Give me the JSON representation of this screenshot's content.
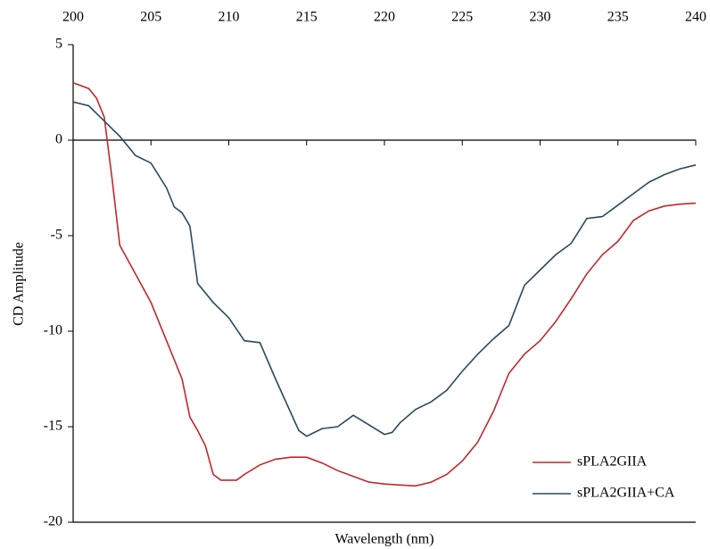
{
  "chart_data": {
    "type": "line",
    "xlabel": "Wavelength (nm)",
    "ylabel": "CD Amplitude",
    "xlim": [
      200,
      240
    ],
    "xticks": [
      200,
      205,
      210,
      215,
      220,
      225,
      230,
      235,
      240
    ],
    "ylim": [
      -20,
      5
    ],
    "yticks": [
      5,
      0,
      -5,
      -10,
      -15,
      -20
    ],
    "legend": "lower right",
    "series": [
      {
        "name": "sPLA2GIIA",
        "color": "#c0282a",
        "x": [
          200,
          201,
          201.5,
          202,
          202.5,
          203,
          204,
          205,
          206,
          207,
          207.5,
          208,
          208.5,
          209,
          209.5,
          210.5,
          211,
          212,
          213,
          214,
          215,
          216,
          217,
          218,
          219,
          220,
          221,
          222,
          223,
          224,
          225,
          226,
          227,
          228,
          229,
          230,
          231,
          232,
          233,
          234,
          235,
          236,
          237,
          238,
          239,
          240
        ],
        "values": [
          3.0,
          2.7,
          2.2,
          1.2,
          -2,
          -5.5,
          -7,
          -8.5,
          -10.5,
          -12.5,
          -14.5,
          -15.2,
          -16,
          -17.5,
          -17.8,
          -17.8,
          -17.5,
          -17,
          -16.7,
          -16.6,
          -16.6,
          -16.9,
          -17.3,
          -17.6,
          -17.9,
          -18.0,
          -18.05,
          -18.1,
          -17.9,
          -17.5,
          -16.8,
          -15.8,
          -14.2,
          -12.2,
          -11.2,
          -10.5,
          -9.5,
          -8.3,
          -7,
          -6,
          -5.3,
          -4.2,
          -3.7,
          -3.45,
          -3.35,
          -3.3
        ]
      },
      {
        "name": "sPLA2GIIA+CA",
        "color": "#2b4a5e",
        "x": [
          200,
          201,
          202,
          203,
          203.5,
          204,
          205,
          206,
          206.5,
          207,
          207.5,
          208,
          209,
          210,
          211,
          212,
          213,
          214,
          214.5,
          215,
          215.5,
          216,
          217,
          218,
          219,
          220,
          220.5,
          221,
          222,
          223,
          224,
          225,
          226,
          227,
          228,
          229,
          230,
          231,
          232,
          233,
          234,
          235,
          236,
          237,
          238,
          239,
          240
        ],
        "values": [
          2.0,
          1.8,
          1.0,
          0.2,
          -0.3,
          -0.8,
          -1.2,
          -2.5,
          -3.5,
          -3.8,
          -4.5,
          -7.5,
          -8.5,
          -9.3,
          -10.5,
          -10.6,
          -12.5,
          -14.3,
          -15.2,
          -15.5,
          -15.3,
          -15.1,
          -15.0,
          -14.4,
          -14.9,
          -15.4,
          -15.3,
          -14.8,
          -14.1,
          -13.7,
          -13.1,
          -12.1,
          -11.2,
          -10.4,
          -9.7,
          -7.6,
          -6.8,
          -6.0,
          -5.4,
          -4.1,
          -4.0,
          -3.4,
          -2.8,
          -2.2,
          -1.8,
          -1.5,
          -1.3
        ]
      }
    ]
  }
}
